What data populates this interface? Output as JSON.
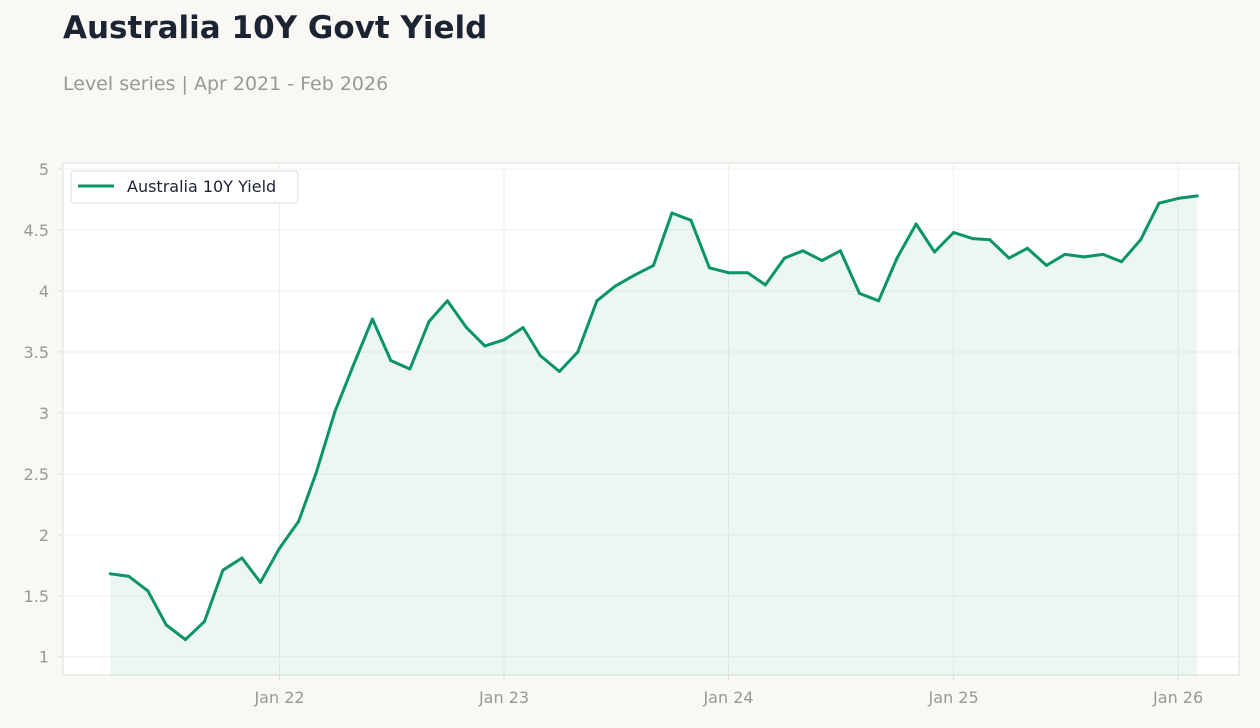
{
  "header": {
    "title": "Australia 10Y Govt Yield",
    "subtitle": "Level series | Apr 2021 - Feb 2026"
  },
  "colors": {
    "background": "#f9f8f4",
    "plot_background": "#ffffff",
    "line": "#0a9467",
    "fill": "#e3f3ed",
    "grid": "#efefec",
    "axis": "#dedcd5",
    "tick_text": "#9a9892",
    "title_text": "#1c2333"
  },
  "chart_data": {
    "type": "area",
    "title": "Australia 10Y Govt Yield",
    "subtitle": "Level series | Apr 2021 - Feb 2026",
    "xlabel": "",
    "ylabel": "",
    "ylim": [
      0.85,
      5.05
    ],
    "xlim": [
      "2021-01-14",
      "2026-04-10"
    ],
    "grid": true,
    "legend": {
      "position": "top-left",
      "entries": [
        "Australia 10Y Yield"
      ]
    },
    "y_ticks": [
      1,
      1.5,
      2,
      2.5,
      3,
      3.5,
      4,
      4.5,
      5
    ],
    "y_tick_labels": [
      "1",
      "1.5",
      "2",
      "2.5",
      "3",
      "3.5",
      "4",
      "4.5",
      "5"
    ],
    "x_ticks": [
      "2022-01-01",
      "2023-01-01",
      "2024-01-01",
      "2025-01-01",
      "2026-01-01"
    ],
    "x_tick_labels": [
      "Jan 22",
      "Jan 23",
      "Jan 24",
      "Jan 25",
      "Jan 26"
    ],
    "series": [
      {
        "name": "Australia 10Y Yield",
        "x": [
          "2021-04-01",
          "2021-05-01",
          "2021-06-01",
          "2021-07-01",
          "2021-08-01",
          "2021-09-01",
          "2021-10-01",
          "2021-11-01",
          "2021-12-01",
          "2022-01-01",
          "2022-02-01",
          "2022-03-01",
          "2022-04-01",
          "2022-05-01",
          "2022-06-01",
          "2022-07-01",
          "2022-08-01",
          "2022-09-01",
          "2022-10-01",
          "2022-11-01",
          "2022-12-01",
          "2023-01-01",
          "2023-02-01",
          "2023-03-01",
          "2023-04-01",
          "2023-05-01",
          "2023-06-01",
          "2023-07-01",
          "2023-08-01",
          "2023-09-01",
          "2023-10-01",
          "2023-11-01",
          "2023-12-01",
          "2024-01-01",
          "2024-02-01",
          "2024-03-01",
          "2024-04-01",
          "2024-05-01",
          "2024-06-01",
          "2024-07-01",
          "2024-08-01",
          "2024-09-01",
          "2024-10-01",
          "2024-11-01",
          "2024-12-01",
          "2025-01-01",
          "2025-02-01",
          "2025-03-01",
          "2025-04-01",
          "2025-05-01",
          "2025-06-01",
          "2025-07-01",
          "2025-08-01",
          "2025-09-01",
          "2025-10-01",
          "2025-11-01",
          "2025-12-01",
          "2026-01-01",
          "2026-02-01"
        ],
        "values": [
          1.68,
          1.66,
          1.54,
          1.26,
          1.14,
          1.29,
          1.71,
          1.81,
          1.61,
          1.89,
          2.11,
          2.5,
          3.01,
          3.39,
          3.77,
          3.43,
          3.36,
          3.75,
          3.92,
          3.7,
          3.55,
          3.6,
          3.7,
          3.47,
          3.34,
          3.5,
          3.92,
          4.04,
          4.13,
          4.21,
          4.64,
          4.58,
          4.19,
          4.15,
          4.15,
          4.05,
          4.27,
          4.33,
          4.25,
          4.33,
          3.98,
          3.92,
          4.27,
          4.55,
          4.32,
          4.48,
          4.43,
          4.42,
          4.27,
          4.35,
          4.21,
          4.3,
          4.28,
          4.3,
          4.24,
          4.42,
          4.72,
          4.76,
          4.78
        ]
      }
    ]
  }
}
